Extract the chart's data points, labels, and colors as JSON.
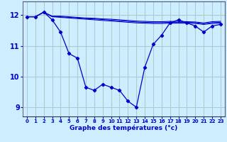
{
  "xlabel": "Graphe des températures (°c)",
  "hours": [
    0,
    1,
    2,
    3,
    4,
    5,
    6,
    7,
    8,
    9,
    10,
    11,
    12,
    13,
    14,
    15,
    16,
    17,
    18,
    19,
    20,
    21,
    22,
    23
  ],
  "line_main": [
    11.95,
    11.95,
    12.1,
    11.85,
    11.45,
    10.75,
    10.6,
    9.65,
    9.55,
    9.75,
    9.65,
    9.55,
    9.2,
    9.0,
    10.3,
    11.05,
    11.35,
    11.75,
    11.85,
    11.75,
    11.65,
    11.45,
    11.65,
    11.7
  ],
  "line_top1": [
    11.95,
    11.95,
    12.1,
    11.95,
    11.93,
    11.91,
    11.89,
    11.87,
    11.85,
    11.83,
    11.81,
    11.79,
    11.77,
    11.75,
    11.74,
    11.73,
    11.73,
    11.74,
    11.74,
    11.74,
    11.73,
    11.7,
    11.73,
    11.74
  ],
  "line_top2": [
    11.95,
    11.95,
    12.1,
    11.96,
    11.95,
    11.93,
    11.91,
    11.89,
    11.88,
    11.86,
    11.84,
    11.82,
    11.8,
    11.78,
    11.77,
    11.76,
    11.76,
    11.77,
    11.77,
    11.77,
    11.76,
    11.72,
    11.76,
    11.77
  ],
  "line_top3": [
    11.95,
    11.95,
    12.1,
    11.97,
    11.97,
    11.95,
    11.93,
    11.91,
    11.9,
    11.88,
    11.87,
    11.85,
    11.83,
    11.81,
    11.8,
    11.79,
    11.79,
    11.8,
    11.8,
    11.79,
    11.78,
    11.75,
    11.79,
    11.8
  ],
  "bg_color": "#cceeff",
  "grid_color": "#aacccc",
  "line_color": "#0000cc",
  "yticks": [
    9,
    10,
    11,
    12
  ],
  "ylim": [
    8.7,
    12.45
  ],
  "xlim": [
    -0.5,
    23.5
  ]
}
